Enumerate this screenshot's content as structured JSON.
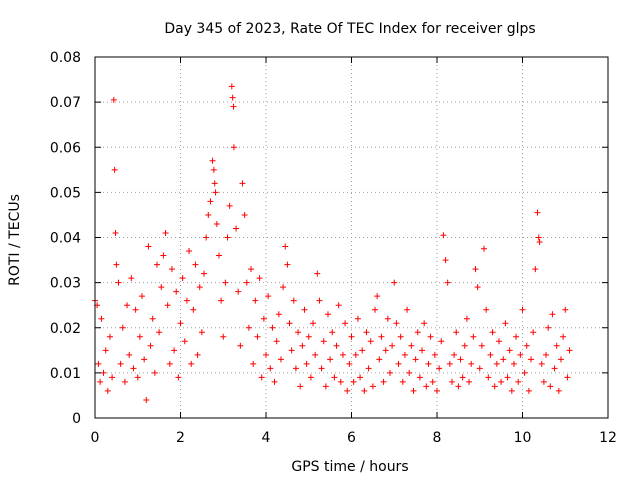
{
  "chart_data": {
    "type": "scatter",
    "title": "Day 345 of 2023, Rate Of TEC Index for receiver glps",
    "xlabel": "GPS time / hours",
    "ylabel": "ROTI / TECUs",
    "xlim": [
      0,
      12
    ],
    "ylim": [
      0,
      0.08
    ],
    "x_ticks": [
      0,
      2,
      4,
      6,
      8,
      10,
      12
    ],
    "y_ticks": [
      0,
      0.01,
      0.02,
      0.03,
      0.04,
      0.05,
      0.06,
      0.07,
      0.08
    ],
    "x_tick_labels": [
      "0",
      "2",
      "4",
      "6",
      "8",
      "10",
      "12"
    ],
    "y_tick_labels": [
      "0",
      "0.01",
      "0.02",
      "0.03",
      "0.04",
      "0.05",
      "0.06",
      "0.07",
      "0.08"
    ],
    "grid": true,
    "marker": "+",
    "marker_color": "#ff0000",
    "series": [
      {
        "name": "ROTI",
        "points": [
          [
            0.0,
            0.026
          ],
          [
            0.05,
            0.025
          ],
          [
            0.08,
            0.012
          ],
          [
            0.12,
            0.008
          ],
          [
            0.15,
            0.022
          ],
          [
            0.2,
            0.01
          ],
          [
            0.25,
            0.015
          ],
          [
            0.3,
            0.006
          ],
          [
            0.35,
            0.018
          ],
          [
            0.4,
            0.009
          ],
          [
            0.44,
            0.0705
          ],
          [
            0.46,
            0.055
          ],
          [
            0.48,
            0.041
          ],
          [
            0.5,
            0.034
          ],
          [
            0.55,
            0.03
          ],
          [
            0.6,
            0.012
          ],
          [
            0.65,
            0.02
          ],
          [
            0.7,
            0.008
          ],
          [
            0.75,
            0.025
          ],
          [
            0.8,
            0.014
          ],
          [
            0.85,
            0.031
          ],
          [
            0.9,
            0.011
          ],
          [
            0.95,
            0.024
          ],
          [
            1.0,
            0.009
          ],
          [
            1.05,
            0.018
          ],
          [
            1.1,
            0.027
          ],
          [
            1.15,
            0.013
          ],
          [
            1.2,
            0.004
          ],
          [
            1.25,
            0.038
          ],
          [
            1.3,
            0.016
          ],
          [
            1.35,
            0.022
          ],
          [
            1.4,
            0.01
          ],
          [
            1.45,
            0.034
          ],
          [
            1.5,
            0.019
          ],
          [
            1.55,
            0.029
          ],
          [
            1.6,
            0.036
          ],
          [
            1.65,
            0.041
          ],
          [
            1.7,
            0.025
          ],
          [
            1.75,
            0.012
          ],
          [
            1.8,
            0.033
          ],
          [
            1.85,
            0.015
          ],
          [
            1.9,
            0.028
          ],
          [
            1.95,
            0.009
          ],
          [
            2.0,
            0.021
          ],
          [
            2.05,
            0.031
          ],
          [
            2.1,
            0.017
          ],
          [
            2.15,
            0.026
          ],
          [
            2.2,
            0.037
          ],
          [
            2.25,
            0.012
          ],
          [
            2.3,
            0.024
          ],
          [
            2.35,
            0.034
          ],
          [
            2.4,
            0.014
          ],
          [
            2.45,
            0.029
          ],
          [
            2.5,
            0.019
          ],
          [
            2.55,
            0.032
          ],
          [
            2.6,
            0.04
          ],
          [
            2.65,
            0.045
          ],
          [
            2.7,
            0.048
          ],
          [
            2.75,
            0.057
          ],
          [
            2.78,
            0.055
          ],
          [
            2.8,
            0.052
          ],
          [
            2.82,
            0.05
          ],
          [
            2.85,
            0.043
          ],
          [
            2.9,
            0.036
          ],
          [
            2.95,
            0.026
          ],
          [
            3.0,
            0.018
          ],
          [
            3.05,
            0.03
          ],
          [
            3.1,
            0.04
          ],
          [
            3.15,
            0.047
          ],
          [
            3.2,
            0.0735
          ],
          [
            3.22,
            0.071
          ],
          [
            3.24,
            0.069
          ],
          [
            3.25,
            0.06
          ],
          [
            3.3,
            0.042
          ],
          [
            3.35,
            0.028
          ],
          [
            3.4,
            0.016
          ],
          [
            3.45,
            0.052
          ],
          [
            3.5,
            0.045
          ],
          [
            3.55,
            0.03
          ],
          [
            3.6,
            0.02
          ],
          [
            3.65,
            0.033
          ],
          [
            3.7,
            0.012
          ],
          [
            3.75,
            0.026
          ],
          [
            3.8,
            0.018
          ],
          [
            3.85,
            0.031
          ],
          [
            3.9,
            0.009
          ],
          [
            3.95,
            0.022
          ],
          [
            4.0,
            0.014
          ],
          [
            4.05,
            0.027
          ],
          [
            4.1,
            0.011
          ],
          [
            4.15,
            0.02
          ],
          [
            4.2,
            0.008
          ],
          [
            4.25,
            0.017
          ],
          [
            4.3,
            0.023
          ],
          [
            4.35,
            0.013
          ],
          [
            4.4,
            0.029
          ],
          [
            4.45,
            0.038
          ],
          [
            4.5,
            0.034
          ],
          [
            4.55,
            0.021
          ],
          [
            4.6,
            0.015
          ],
          [
            4.65,
            0.026
          ],
          [
            4.7,
            0.011
          ],
          [
            4.75,
            0.019
          ],
          [
            4.8,
            0.007
          ],
          [
            4.85,
            0.016
          ],
          [
            4.9,
            0.024
          ],
          [
            4.95,
            0.012
          ],
          [
            5.0,
            0.018
          ],
          [
            5.05,
            0.009
          ],
          [
            5.1,
            0.021
          ],
          [
            5.15,
            0.014
          ],
          [
            5.2,
            0.032
          ],
          [
            5.25,
            0.026
          ],
          [
            5.3,
            0.011
          ],
          [
            5.35,
            0.017
          ],
          [
            5.4,
            0.007
          ],
          [
            5.45,
            0.023
          ],
          [
            5.5,
            0.013
          ],
          [
            5.55,
            0.019
          ],
          [
            5.6,
            0.009
          ],
          [
            5.65,
            0.016
          ],
          [
            5.7,
            0.025
          ],
          [
            5.75,
            0.008
          ],
          [
            5.8,
            0.014
          ],
          [
            5.85,
            0.021
          ],
          [
            5.9,
            0.006
          ],
          [
            5.95,
            0.012
          ],
          [
            6.0,
            0.018
          ],
          [
            6.05,
            0.008
          ],
          [
            6.1,
            0.014
          ],
          [
            6.15,
            0.022
          ],
          [
            6.2,
            0.009
          ],
          [
            6.25,
            0.015
          ],
          [
            6.3,
            0.006
          ],
          [
            6.35,
            0.019
          ],
          [
            6.4,
            0.011
          ],
          [
            6.45,
            0.017
          ],
          [
            6.5,
            0.007
          ],
          [
            6.55,
            0.024
          ],
          [
            6.6,
            0.027
          ],
          [
            6.65,
            0.013
          ],
          [
            6.7,
            0.018
          ],
          [
            6.75,
            0.008
          ],
          [
            6.8,
            0.015
          ],
          [
            6.85,
            0.022
          ],
          [
            6.9,
            0.01
          ],
          [
            6.95,
            0.016
          ],
          [
            7.0,
            0.03
          ],
          [
            7.05,
            0.021
          ],
          [
            7.1,
            0.012
          ],
          [
            7.15,
            0.018
          ],
          [
            7.2,
            0.008
          ],
          [
            7.25,
            0.014
          ],
          [
            7.3,
            0.024
          ],
          [
            7.35,
            0.01
          ],
          [
            7.4,
            0.016
          ],
          [
            7.45,
            0.006
          ],
          [
            7.5,
            0.013
          ],
          [
            7.55,
            0.019
          ],
          [
            7.6,
            0.009
          ],
          [
            7.65,
            0.015
          ],
          [
            7.7,
            0.021
          ],
          [
            7.75,
            0.007
          ],
          [
            7.8,
            0.012
          ],
          [
            7.85,
            0.018
          ],
          [
            7.9,
            0.008
          ],
          [
            7.95,
            0.014
          ],
          [
            8.0,
            0.006
          ],
          [
            8.05,
            0.011
          ],
          [
            8.1,
            0.017
          ],
          [
            8.15,
            0.0405
          ],
          [
            8.2,
            0.035
          ],
          [
            8.25,
            0.03
          ],
          [
            8.3,
            0.012
          ],
          [
            8.35,
            0.008
          ],
          [
            8.4,
            0.014
          ],
          [
            8.45,
            0.019
          ],
          [
            8.5,
            0.007
          ],
          [
            8.55,
            0.013
          ],
          [
            8.6,
            0.009
          ],
          [
            8.65,
            0.016
          ],
          [
            8.7,
            0.022
          ],
          [
            8.75,
            0.008
          ],
          [
            8.8,
            0.012
          ],
          [
            8.85,
            0.018
          ],
          [
            8.9,
            0.033
          ],
          [
            8.95,
            0.029
          ],
          [
            9.0,
            0.011
          ],
          [
            9.05,
            0.016
          ],
          [
            9.1,
            0.0375
          ],
          [
            9.15,
            0.024
          ],
          [
            9.2,
            0.009
          ],
          [
            9.25,
            0.014
          ],
          [
            9.3,
            0.019
          ],
          [
            9.35,
            0.007
          ],
          [
            9.4,
            0.012
          ],
          [
            9.45,
            0.017
          ],
          [
            9.5,
            0.008
          ],
          [
            9.55,
            0.013
          ],
          [
            9.6,
            0.021
          ],
          [
            9.65,
            0.009
          ],
          [
            9.7,
            0.015
          ],
          [
            9.75,
            0.006
          ],
          [
            9.8,
            0.012
          ],
          [
            9.85,
            0.018
          ],
          [
            9.9,
            0.008
          ],
          [
            9.95,
            0.014
          ],
          [
            10.0,
            0.024
          ],
          [
            10.05,
            0.01
          ],
          [
            10.1,
            0.016
          ],
          [
            10.15,
            0.006
          ],
          [
            10.2,
            0.013
          ],
          [
            10.25,
            0.019
          ],
          [
            10.3,
            0.033
          ],
          [
            10.35,
            0.0455
          ],
          [
            10.38,
            0.04
          ],
          [
            10.4,
            0.039
          ],
          [
            10.45,
            0.012
          ],
          [
            10.5,
            0.008
          ],
          [
            10.55,
            0.014
          ],
          [
            10.6,
            0.02
          ],
          [
            10.65,
            0.007
          ],
          [
            10.7,
            0.023
          ],
          [
            10.75,
            0.011
          ],
          [
            10.8,
            0.016
          ],
          [
            10.85,
            0.006
          ],
          [
            10.9,
            0.013
          ],
          [
            10.95,
            0.018
          ],
          [
            11.0,
            0.024
          ],
          [
            11.05,
            0.009
          ],
          [
            11.1,
            0.015
          ]
        ]
      }
    ]
  }
}
